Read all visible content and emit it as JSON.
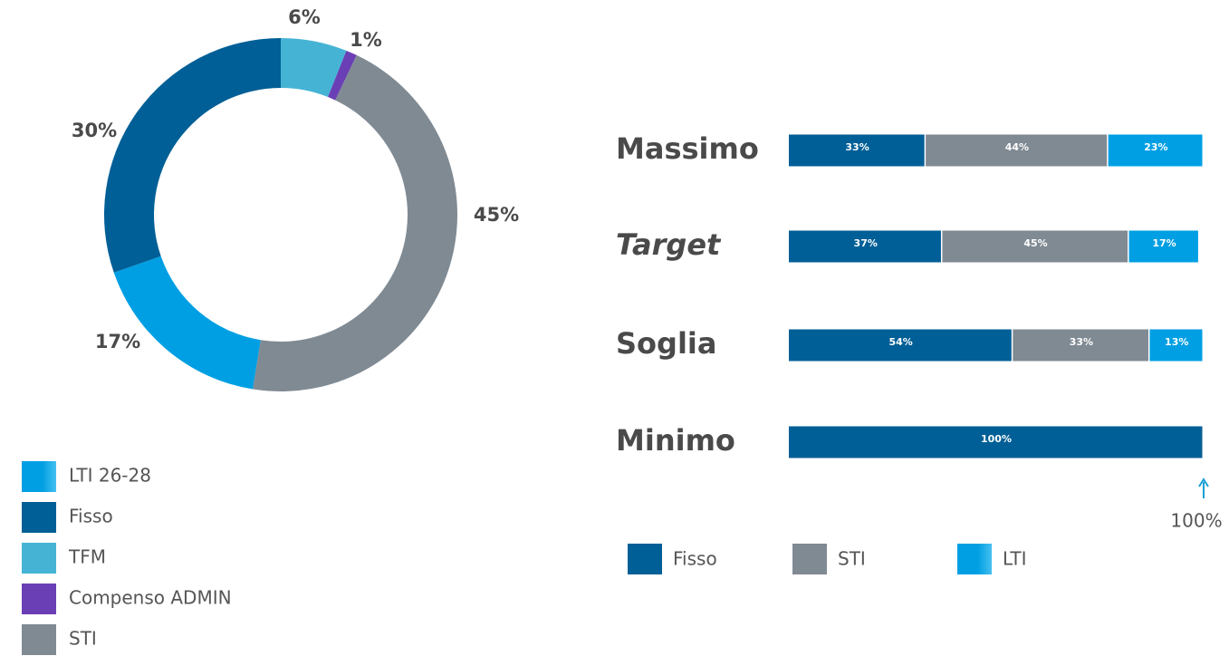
{
  "chart_data": [
    {
      "type": "donut",
      "categories": [
        "LTI 26-28",
        "Fisso",
        "TFM",
        "Compenso ADMIN",
        "STI"
      ],
      "values": [
        17,
        30,
        6,
        1,
        45
      ],
      "value_labels": [
        "17%",
        "30%",
        "6%",
        "1%",
        "45%"
      ],
      "colors": [
        "#009fe3",
        "#005f96",
        "#45b4d4",
        "#6a3fb5",
        "#808a93"
      ]
    },
    {
      "type": "stacked-barh",
      "categories": [
        "Massimo",
        "Target",
        "Soglia",
        "Minimo"
      ],
      "series": [
        {
          "name": "Fisso",
          "color": "#005f96",
          "values": [
            33,
            37,
            54,
            100
          ],
          "value_labels": [
            "33%",
            "37%",
            "54%",
            "100%"
          ]
        },
        {
          "name": "STI",
          "color": "#808a93",
          "values": [
            44,
            45,
            33,
            null
          ],
          "value_labels": [
            "44%",
            "45%",
            "33%",
            null
          ]
        },
        {
          "name": "LTI",
          "color": "#009fe3",
          "values": [
            23,
            17,
            13,
            null
          ],
          "value_labels": [
            "23%",
            "17%",
            "13%",
            null
          ]
        }
      ],
      "xlim": [
        0,
        100
      ],
      "annotation": "100%"
    }
  ]
}
